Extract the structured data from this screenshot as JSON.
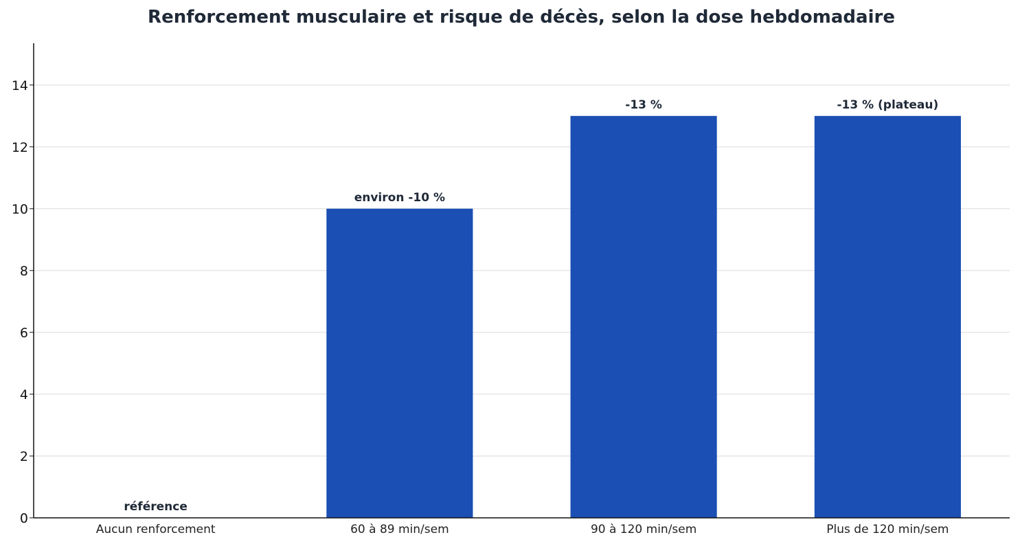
{
  "chart_data": {
    "type": "bar",
    "title": "Renforcement musculaire et risque de décès, selon la dose hebdomadaire",
    "xlabel": "",
    "ylabel": "",
    "categories": [
      "Aucun renforcement",
      "60 à 89 min/sem",
      "90 à 120 min/sem",
      "Plus de 120 min/sem"
    ],
    "values": [
      0,
      10,
      13,
      13
    ],
    "data_labels": [
      "référence",
      "environ -10 %",
      "-13 %",
      "-13 % (plateau)"
    ],
    "ylim": [
      0,
      15.35
    ],
    "yticks": [
      0,
      2,
      4,
      6,
      8,
      10,
      12,
      14
    ],
    "grid": "horizontal",
    "colors": {
      "bar": "#1b4fb3",
      "grid": "#e6e6e6",
      "axis": "#111111",
      "text": "#1f2937"
    }
  }
}
